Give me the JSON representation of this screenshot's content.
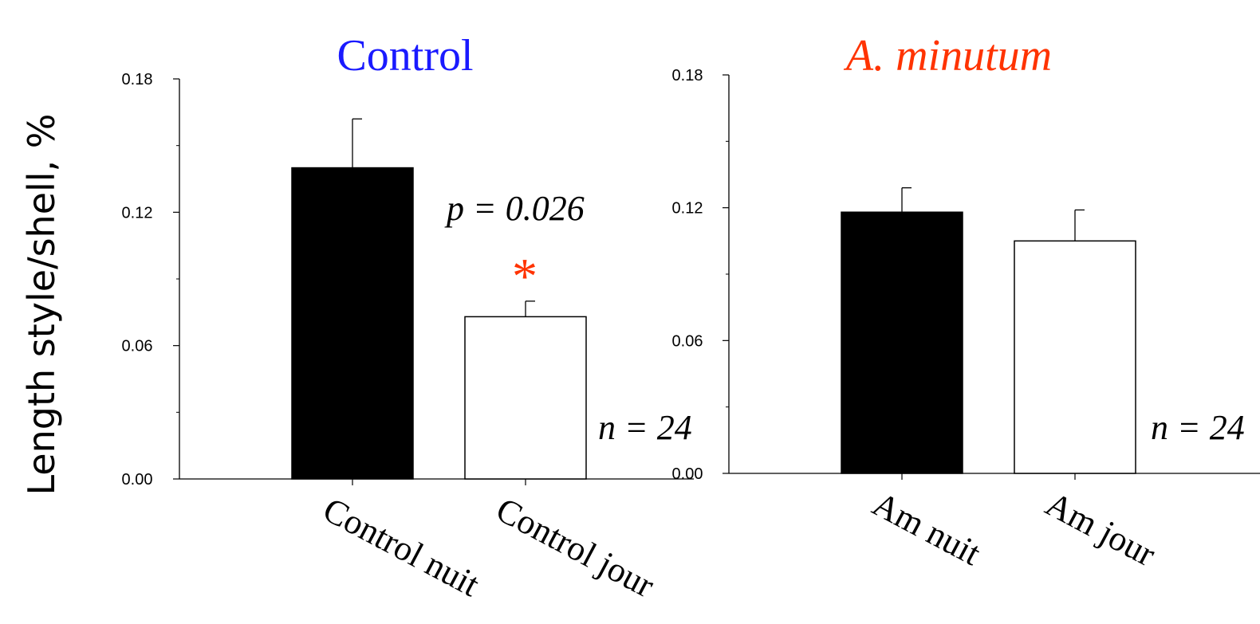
{
  "chart_data": [
    {
      "type": "bar",
      "title": "Control",
      "title_color": "#1a1aff",
      "ylabel": "Length style/shell, %",
      "ylim": [
        0,
        0.18
      ],
      "yticks": [
        "0.00",
        "0.06",
        "0.12",
        "0.18"
      ],
      "categories": [
        "Control nuit",
        "Control jour"
      ],
      "values": [
        0.14,
        0.073
      ],
      "errors": [
        0.022,
        0.007
      ],
      "bar_colors": [
        "#000000",
        "#ffffff"
      ],
      "annotation_p": "p = 0.026",
      "significance_mark": "*",
      "significance_color": "#ff3300",
      "annotation_n": "n = 24"
    },
    {
      "type": "bar",
      "title": "A. minutum",
      "title_color": "#ff3300",
      "ylim": [
        0,
        0.18
      ],
      "yticks": [
        "0.00",
        "0.06",
        "0.12",
        "0.18"
      ],
      "categories": [
        "Am nuit",
        "Am jour"
      ],
      "values": [
        0.118,
        0.105
      ],
      "errors": [
        0.011,
        0.014
      ],
      "bar_colors": [
        "#000000",
        "#ffffff"
      ],
      "annotation_n": "n = 24"
    }
  ]
}
